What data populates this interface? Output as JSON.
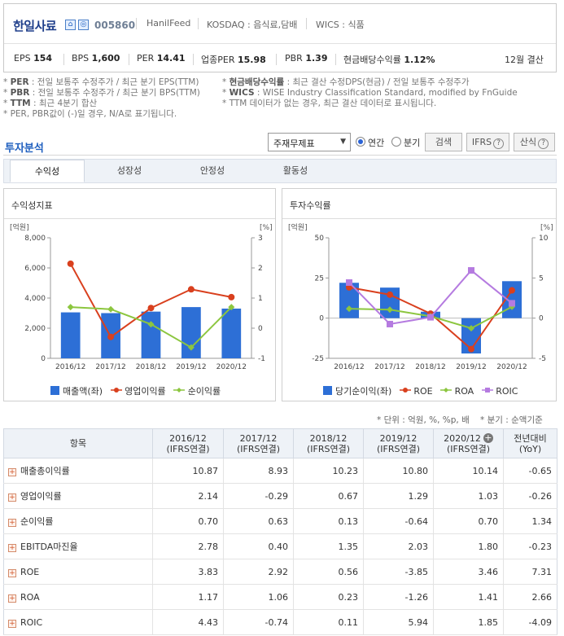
{
  "company": {
    "name": "한일사료",
    "code": "005860",
    "eng": "HanilFeed",
    "market": "KOSDAQ : 음식료,담배",
    "wics": "WICS : 식품",
    "icon1": "home-icon",
    "icon2": "company-info-icon"
  },
  "metrics": [
    {
      "label": "EPS",
      "value": "154"
    },
    {
      "label": "BPS",
      "value": "1,600"
    },
    {
      "label": "PER",
      "value": "14.41"
    },
    {
      "label": "업종PER",
      "value": "15.98"
    },
    {
      "label": "PBR",
      "value": "1.39"
    },
    {
      "label": "현금배당수익률",
      "value": "1.12%"
    }
  ],
  "settlement": "12월 결산",
  "notes": {
    "n1_key": "PER",
    "n1_text": ": 전일 보통주 수정주가 / 최근 분기 EPS(TTM)",
    "n2_key": "PBR",
    "n2_text": ": 전일 보통주 수정주가 / 최근 분기 BPS(TTM)",
    "n3_key": "TTM",
    "n3_text": ": 최근 4분기 합산",
    "n4_text": "PER, PBR값이 (-)일 경우, N/A로 표기됩니다.",
    "n5_key": "현금배당수익률",
    "n5_text": ": 최근 결산 수정DPS(현금) / 전일 보통주 수정주가",
    "n6_key": "WICS",
    "n6_text": ": WISE Industry Classification Standard, modified by FnGuide",
    "n7_text": "TTM 데이터가 없는 경우, 최근 결산 데이터로 표시됩니다."
  },
  "section": {
    "title": "투자분석",
    "select_value": "주재무제표",
    "radio_annual": "연간",
    "radio_quarter": "분기",
    "search_btn": "검색",
    "ifrs_btn": "IFRS",
    "calc_btn": "산식"
  },
  "tabs": [
    "수익성",
    "성장성",
    "안정성",
    "활동성"
  ],
  "panels": {
    "left_title": "수익성지표",
    "right_title": "투자수익률"
  },
  "chart_data": [
    {
      "type": "bar",
      "categories": [
        "2016/12",
        "2017/12",
        "2018/12",
        "2019/12",
        "2020/12"
      ],
      "left_unit": "[억원]",
      "right_unit": "[%]",
      "left_ylim": [
        0,
        8000
      ],
      "left_ticks": [
        "0",
        "2,000",
        "4,000",
        "6,000",
        "8,000"
      ],
      "right_ylim": [
        -1,
        3
      ],
      "right_ticks": [
        "-1",
        "0",
        "1",
        "2",
        "3"
      ],
      "series": [
        {
          "name": "매출액(좌)",
          "kind": "bar",
          "axis": "left",
          "color": "#2d6fd6",
          "values": [
            3050,
            3000,
            3100,
            3400,
            3300
          ]
        },
        {
          "name": "영업이익률",
          "kind": "line",
          "axis": "right",
          "color": "#d9401e",
          "values": [
            2.14,
            -0.29,
            0.67,
            1.29,
            1.03
          ]
        },
        {
          "name": "순이익률",
          "kind": "line",
          "axis": "right",
          "color": "#8cc63f",
          "values": [
            0.7,
            0.63,
            0.13,
            -0.64,
            0.7
          ]
        }
      ]
    },
    {
      "type": "bar",
      "categories": [
        "2016/12",
        "2017/12",
        "2018/12",
        "2019/12",
        "2020/12"
      ],
      "left_unit": "[억원]",
      "right_unit": "[%]",
      "left_ylim": [
        -25,
        50
      ],
      "left_ticks": [
        "-25",
        "0",
        "25",
        "50"
      ],
      "right_ylim": [
        -5,
        10
      ],
      "right_ticks": [
        "-5",
        "0",
        "5",
        "10"
      ],
      "series": [
        {
          "name": "당기순이익(좌)",
          "kind": "bar",
          "axis": "left",
          "color": "#2d6fd6",
          "values": [
            22,
            19,
            4,
            -22,
            23
          ]
        },
        {
          "name": "ROE",
          "kind": "line",
          "axis": "right",
          "color": "#d9401e",
          "values": [
            3.83,
            2.92,
            0.56,
            -3.85,
            3.46
          ]
        },
        {
          "name": "ROA",
          "kind": "line",
          "axis": "right",
          "color": "#8cc63f",
          "values": [
            1.17,
            1.06,
            0.23,
            -1.26,
            1.41
          ]
        },
        {
          "name": "ROIC",
          "kind": "line",
          "axis": "right",
          "color": "#b57be0",
          "values": [
            4.43,
            -0.74,
            0.11,
            5.94,
            1.85
          ]
        }
      ]
    }
  ],
  "table": {
    "unit_note": "* 단위 : 억원, %, %p, 배",
    "quarter_note": "* 분기 : 순액기준",
    "header_item": "항목",
    "columns": [
      {
        "year": "2016/12",
        "sub": "(IFRS연결)"
      },
      {
        "year": "2017/12",
        "sub": "(IFRS연결)"
      },
      {
        "year": "2018/12",
        "sub": "(IFRS연결)"
      },
      {
        "year": "2019/12",
        "sub": "(IFRS연결)"
      },
      {
        "year": "2020/12",
        "sub": "(IFRS연결)"
      }
    ],
    "yoy_header": "전년대비",
    "yoy_sub": "(YoY)",
    "rows": [
      {
        "label": "매출총이익률",
        "values": [
          "10.87",
          "8.93",
          "10.23",
          "10.80",
          "10.14"
        ],
        "yoy": "-0.65"
      },
      {
        "label": "영업이익률",
        "values": [
          "2.14",
          "-0.29",
          "0.67",
          "1.29",
          "1.03"
        ],
        "yoy": "-0.26"
      },
      {
        "label": "순이익률",
        "values": [
          "0.70",
          "0.63",
          "0.13",
          "-0.64",
          "0.70"
        ],
        "yoy": "1.34"
      },
      {
        "label": "EBITDA마진율",
        "values": [
          "2.78",
          "0.40",
          "1.35",
          "2.03",
          "1.80"
        ],
        "yoy": "-0.23"
      },
      {
        "label": "ROE",
        "values": [
          "3.83",
          "2.92",
          "0.56",
          "-3.85",
          "3.46"
        ],
        "yoy": "7.31"
      },
      {
        "label": "ROA",
        "values": [
          "1.17",
          "1.06",
          "0.23",
          "-1.26",
          "1.41"
        ],
        "yoy": "2.66"
      },
      {
        "label": "ROIC",
        "values": [
          "4.43",
          "-0.74",
          "0.11",
          "5.94",
          "1.85"
        ],
        "yoy": "-4.09"
      }
    ]
  }
}
